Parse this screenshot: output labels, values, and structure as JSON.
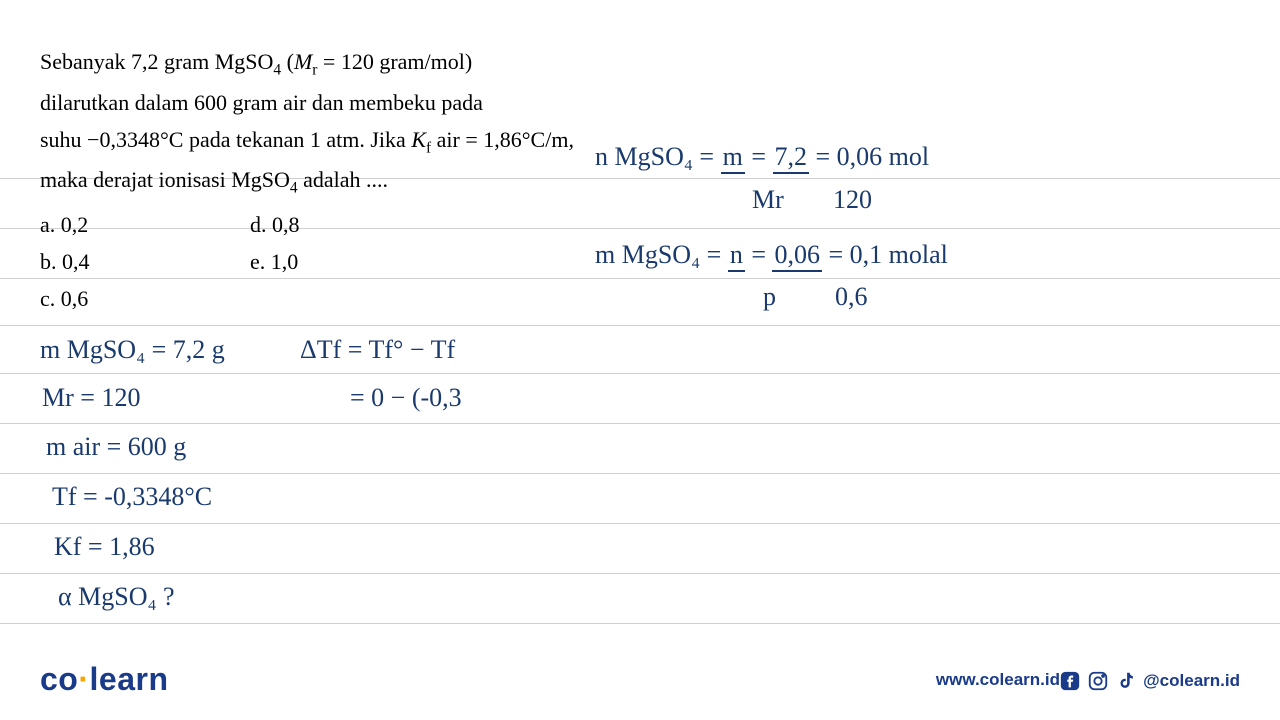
{
  "question": {
    "line1_a": "Sebanyak 7,2 gram MgSO",
    "line1_sub": "4",
    "line1_b": " (",
    "line1_mr": "M",
    "line1_rsub": "r",
    "line1_c": " = 120 gram/mol)",
    "line2": "dilarutkan dalam 600 gram air dan membeku pada",
    "line3_a": "suhu −0,3348°C pada tekanan 1 atm. Jika ",
    "line3_kf": "K",
    "line3_fsub": "f",
    "line3_b": " air = 1,86°C/m,",
    "line4_a": "maka derajat ionisasi MgSO",
    "line4_sub": "4",
    "line4_b": " adalah ...."
  },
  "options": {
    "a": "a.    0,2",
    "b": "b.    0,4",
    "c": "c.    0,6",
    "d": "d.    0,8",
    "e": "e.    1,0"
  },
  "handwriting": {
    "n_mgso4": "n MgSO₄ = ",
    "frac_m": "m",
    "frac_mr": "Mr",
    "eq1": " = ",
    "frac_72": "7,2",
    "frac_120": "120",
    "res1": " = 0,06 mol",
    "m_mgso4_2": "m MgSO₄ = ",
    "frac_n": "n",
    "frac_p": "p",
    "frac_006": "0,06",
    "frac_06": "0,6",
    "res2": " = 0,1 molal",
    "given1": "m MgSO₄ = 7,2 g",
    "given2": "Mr = 120",
    "given3": "m air = 600 g",
    "given4": "Tf = -0,3348°C",
    "given5": "Kf = 1,86",
    "given6": "α MgSO₄ ?",
    "dtf1": "ΔTf = Tf° − Tf",
    "dtf2": "= 0 − (-0,3"
  },
  "footer": {
    "logo_co": "co",
    "logo_dot": "·",
    "logo_learn": "learn",
    "website": "www.colearn.id",
    "handle": "@colearn.id"
  },
  "style": {
    "line_color": "#d0d0d0",
    "hw_color": "#1a3a6e",
    "brand_color": "#1a3a8a",
    "accent": "#f7a400",
    "line_positions": [
      178,
      228,
      278,
      325,
      373,
      423,
      473,
      523,
      573,
      623
    ]
  }
}
